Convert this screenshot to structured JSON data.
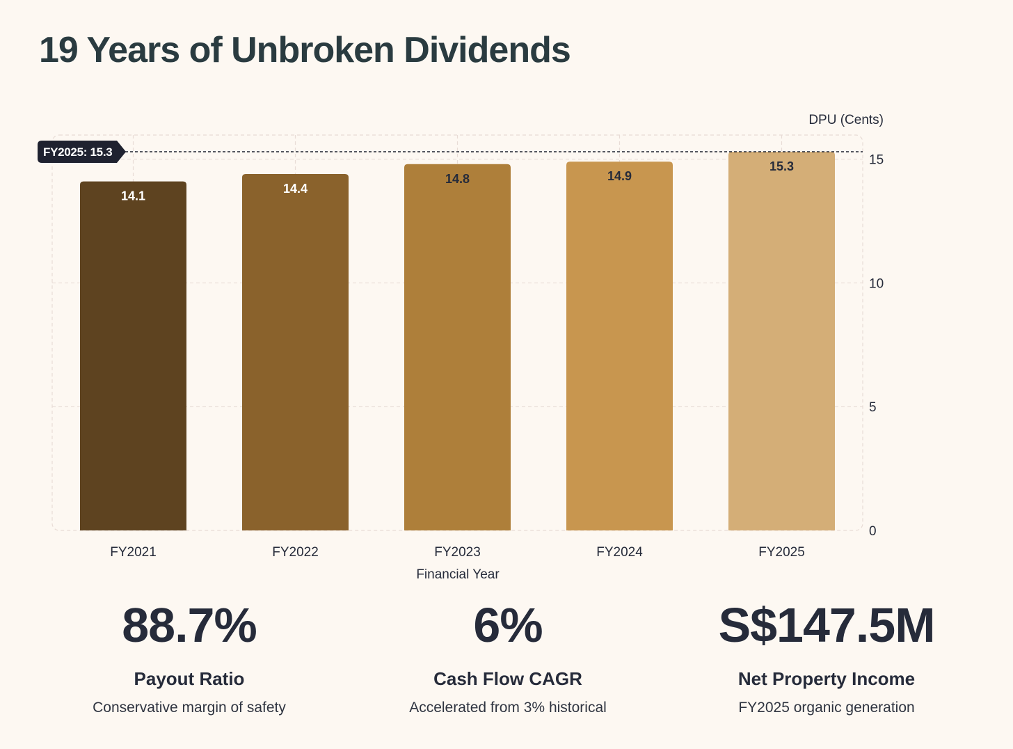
{
  "page": {
    "title": "19 Years of Unbroken Dividends"
  },
  "chart_data": {
    "type": "bar",
    "title": "",
    "categories": [
      "FY2021",
      "FY2022",
      "FY2023",
      "FY2024",
      "FY2025"
    ],
    "values": [
      14.1,
      14.4,
      14.8,
      14.9,
      15.3
    ],
    "value_labels": [
      "14.1",
      "14.4",
      "14.8",
      "14.9",
      "15.3"
    ],
    "xlabel": "Financial Year",
    "ylabel": "DPU (Cents)",
    "ylim": [
      0,
      15.3
    ],
    "yticks": [
      0,
      5,
      10,
      15
    ],
    "ytick_labels": [
      "0",
      "5",
      "10",
      "15"
    ],
    "grid": true,
    "bar_colors": [
      "#5e4320",
      "#8a622c",
      "#ae7f3a",
      "#c8964f",
      "#d4ae77"
    ],
    "label_colors": [
      "#ffffff",
      "#ffffff",
      "#262b3a",
      "#262b3a",
      "#262b3a"
    ],
    "reference_line": {
      "value": 15.3,
      "label": "FY2025: 15.3",
      "style": "dashed"
    }
  },
  "stats": [
    {
      "value": "88.7%",
      "label": "Payout Ratio",
      "description": "Conservative margin of safety"
    },
    {
      "value": "6%",
      "label": "Cash Flow CAGR",
      "description": "Accelerated from 3% historical"
    },
    {
      "value": "S$147.5M",
      "label": "Net Property Income",
      "description": "FY2025 organic generation"
    }
  ],
  "colors": {
    "background": "#fdf8f2",
    "title": "#2a3b40",
    "text": "#262b3a",
    "badge": "#1f2230",
    "grid": "#e8dcd6"
  }
}
